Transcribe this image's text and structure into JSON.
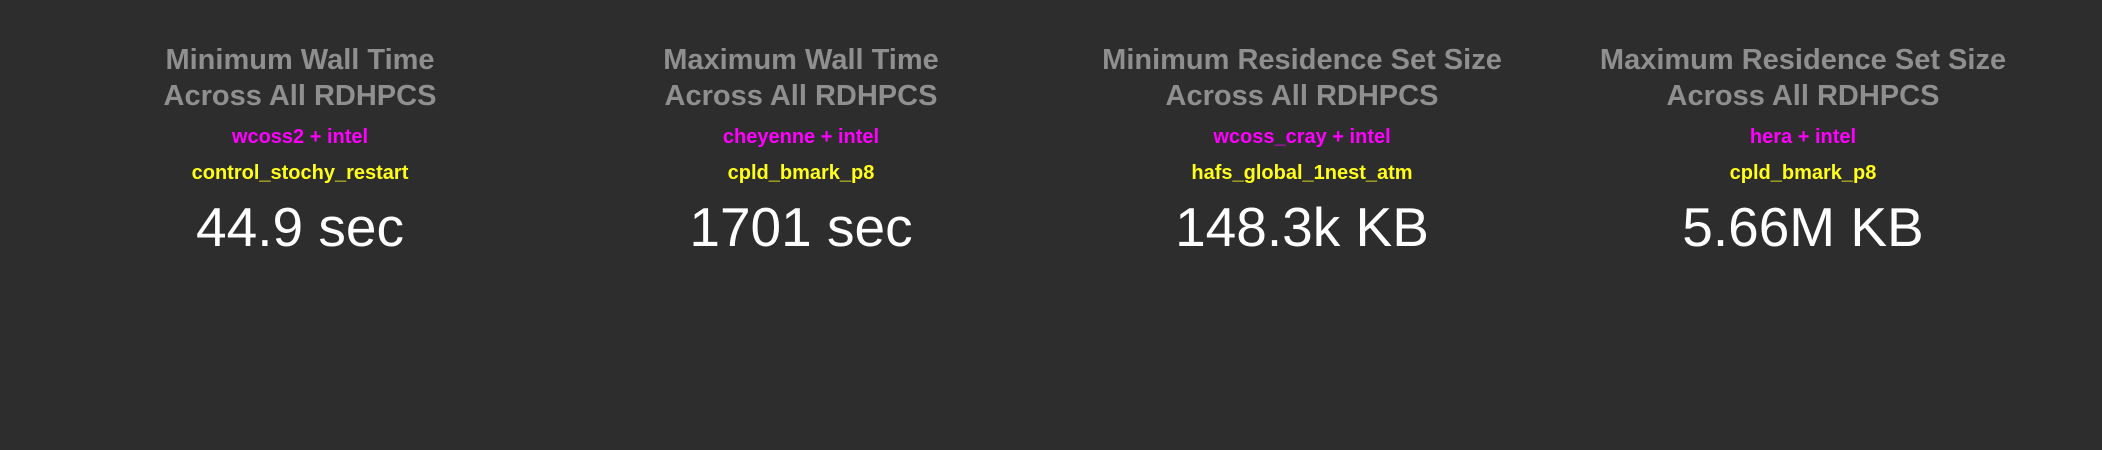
{
  "stats": [
    {
      "title_line1": "Minimum Wall Time",
      "title_line2": "Across All RDHPCS",
      "platform": "wcoss2 + intel",
      "test": "control_stochy_restart",
      "value": "44.9 sec"
    },
    {
      "title_line1": "Maximum Wall Time",
      "title_line2": "Across All RDHPCS",
      "platform": "cheyenne + intel",
      "test": "cpld_bmark_p8",
      "value": "1701 sec"
    },
    {
      "title_line1": "Minimum Residence Set Size",
      "title_line2": "Across All RDHPCS",
      "platform": "wcoss_cray + intel",
      "test": "hafs_global_1nest_atm",
      "value": "148.3k KB"
    },
    {
      "title_line1": "Maximum Residence Set Size",
      "title_line2": "Across All RDHPCS",
      "platform": "hera + intel",
      "test": "cpld_bmark_p8",
      "value": "5.66M KB"
    }
  ],
  "colors": {
    "background": "#2d2d2d",
    "title": "#8f8f8f",
    "platform": "#ff00ff",
    "test": "#ffff1a",
    "value": "#ffffff"
  }
}
